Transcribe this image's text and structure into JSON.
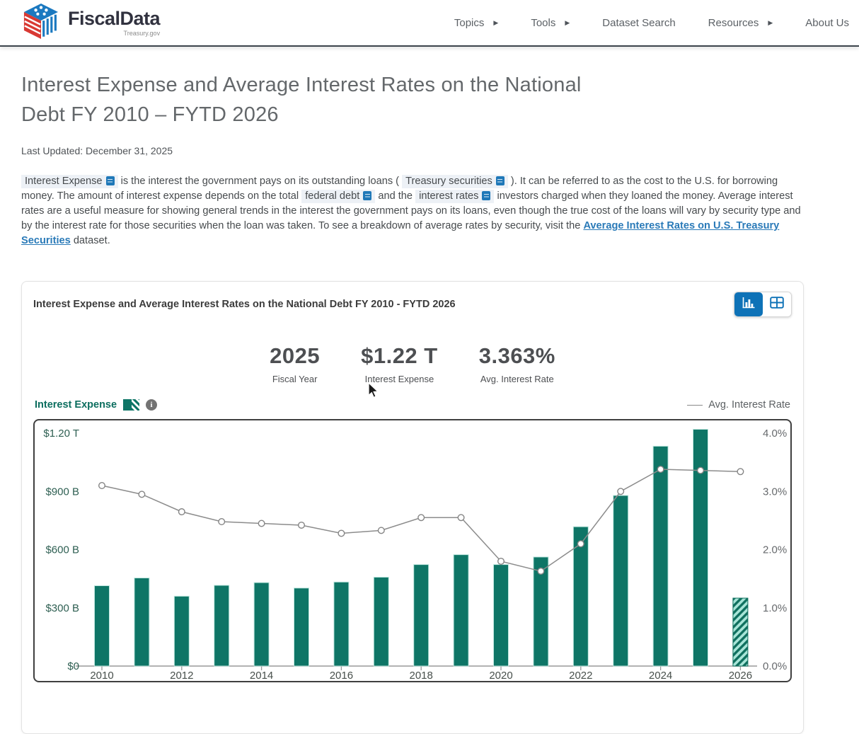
{
  "header": {
    "logo": {
      "title": "FiscalData",
      "tagline": "Treasury.gov"
    },
    "nav": [
      {
        "label": "Topics",
        "has_submenu": true
      },
      {
        "label": "Tools",
        "has_submenu": true
      },
      {
        "label": "Dataset Search",
        "has_submenu": false
      },
      {
        "label": "Resources",
        "has_submenu": true
      },
      {
        "label": "About Us",
        "has_submenu": false
      }
    ]
  },
  "page": {
    "title": "Interest Expense and Average Interest Rates on the National Debt FY 2010 – FYTD 2026",
    "last_updated": "Last Updated: December 31, 2025",
    "intro_segments": [
      {
        "type": "term",
        "text": "Interest Expense"
      },
      {
        "type": "text",
        "text": " is the interest the government pays on its outstanding loans ( "
      },
      {
        "type": "term",
        "text": "Treasury securities"
      },
      {
        "type": "text",
        "text": " ). It can be referred to as the cost to the U.S. for borrowing money. The amount of interest expense depends on the total "
      },
      {
        "type": "term",
        "text": "federal debt"
      },
      {
        "type": "text",
        "text": " and the "
      },
      {
        "type": "term",
        "text": "interest rates"
      },
      {
        "type": "text",
        "text": " investors charged when they loaned the money. Average interest rates are a useful measure for showing general trends in the interest the government pays on its loans, even though the true cost of the loans will vary by security type and by the interest rate for those securities when the loan was taken. To see a breakdown of average rates by security, visit the "
      },
      {
        "type": "link",
        "text": "Average Interest Rates on U.S. Treasury Securities"
      },
      {
        "type": "text",
        "text": " dataset."
      }
    ]
  },
  "chart_card": {
    "title": "Interest Expense and Average Interest Rates on the National Debt FY 2010 - FYTD 2026",
    "view_toggle": {
      "active": "chart-view",
      "options": [
        "chart-view",
        "table-view"
      ]
    },
    "stats": [
      {
        "value": "2025",
        "label": "Fiscal Year"
      },
      {
        "value": "$1.22 T",
        "label": "Interest Expense"
      },
      {
        "value": "3.363%",
        "label": "Avg. Interest Rate"
      }
    ],
    "legend": {
      "bar_label": "Interest Expense",
      "line_label": "Avg. Interest Rate"
    }
  },
  "chart_data": {
    "type": "bar+line",
    "categories": [
      2010,
      2011,
      2012,
      2013,
      2014,
      2015,
      2016,
      2017,
      2018,
      2019,
      2020,
      2021,
      2022,
      2023,
      2024,
      2025,
      2026
    ],
    "series": [
      {
        "name": "Interest Expense",
        "type": "bar",
        "unit": "USD billions",
        "values": [
          414,
          454,
          360,
          416,
          430,
          402,
          433,
          458,
          523,
          574,
          523,
          562,
          718,
          879,
          1133,
          1220,
          350
        ],
        "last_bar_hatched": true,
        "last_bar_note": "FYTD 2026 partial-year value shown with hatch pattern"
      },
      {
        "name": "Avg. Interest Rate",
        "type": "line",
        "unit": "percent",
        "values": [
          3.1,
          2.95,
          2.65,
          2.48,
          2.45,
          2.42,
          2.28,
          2.33,
          2.55,
          2.55,
          1.8,
          1.63,
          2.1,
          3.0,
          3.38,
          3.36,
          3.34
        ]
      }
    ],
    "left_axis": {
      "ticks": [
        "$0",
        "$300 B",
        "$600 B",
        "$900 B",
        "$1.20 T"
      ],
      "range": [
        0,
        1200
      ]
    },
    "right_axis": {
      "ticks": [
        "0.0%",
        "1.0%",
        "2.0%",
        "3.0%",
        "4.0%"
      ],
      "range": [
        0,
        4
      ]
    },
    "x_ticks": [
      2010,
      2012,
      2014,
      2016,
      2018,
      2020,
      2022,
      2024,
      2026
    ],
    "grid": false,
    "legend_position": "top",
    "colors": {
      "bar": "#0e7566",
      "bar_edge": "#bde6de",
      "hatch_bg": "#a8e5d8",
      "hatch_stripe": "#10705f",
      "line": "#8c8c8c",
      "left_axis_text": "#2e5f52",
      "right_axis_text": "#66696c",
      "x_axis_text": "#474f4b"
    }
  },
  "theme": {
    "accent_blue": "#0e72b7",
    "link_color": "#2a7ab8",
    "legend_text": "#0c6e5f",
    "header_border": "#3c444c"
  }
}
